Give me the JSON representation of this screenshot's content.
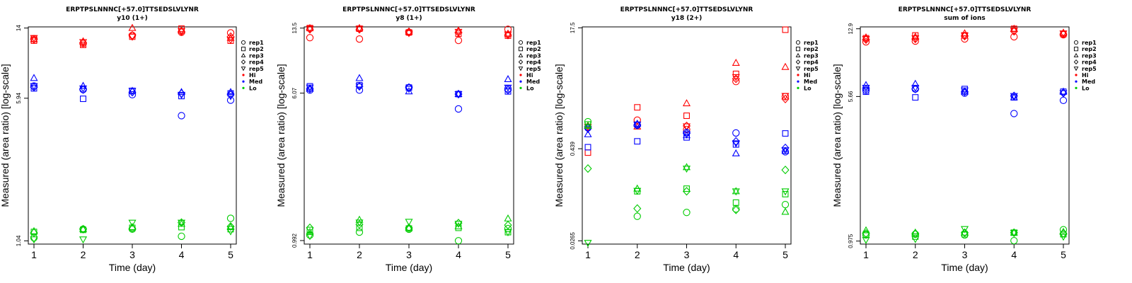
{
  "figure_title": "ERPTPSLNNNC[+57.0]TTSEDSLVLYNR",
  "legend": [
    {
      "label": "rep1",
      "shape": "circle"
    },
    {
      "label": "rep2",
      "shape": "square"
    },
    {
      "label": "rep3",
      "shape": "triangle-up"
    },
    {
      "label": "rep4",
      "shape": "diamond"
    },
    {
      "label": "rep5",
      "shape": "triangle-down"
    },
    {
      "label": "Hi",
      "shape": "dot",
      "color": "#ff0000"
    },
    {
      "label": "Med",
      "shape": "dot",
      "color": "#0000ff"
    },
    {
      "label": "Lo",
      "shape": "dot",
      "color": "#00cc00"
    }
  ],
  "colors": {
    "Hi": "#ff0000",
    "Med": "#0000ff",
    "Lo": "#00cc00"
  },
  "chart_data": [
    {
      "type": "scatter",
      "title": "ERPTPSLNNNC[+57.0]TTSEDSLVLYNR",
      "subtitle": "y10 (1+)",
      "xlabel": "Time (day)",
      "ylabel": "Measured (area ratio) [log-scale]",
      "yscale": "log",
      "x_ticks": [
        "1",
        "2",
        "3",
        "4",
        "5"
      ],
      "y_ticks": [
        {
          "value": 1.04,
          "label": "1.04"
        },
        {
          "value": 5.94,
          "label": "5.94"
        },
        {
          "value": 14,
          "label": "14"
        }
      ],
      "ylim": [
        1.0,
        14.2
      ],
      "series": [
        {
          "name": "Hi",
          "color": "#ff0000",
          "points": {
            "rep1": [
              12.3,
              11.6,
              12.8,
              13.3,
              13.2
            ],
            "rep2": [
              12.0,
              11.4,
              12.6,
              13.9,
              12.0
            ],
            "rep3": [
              12.2,
              11.9,
              14.0,
              13.6,
              12.4
            ],
            "rep4": [
              12.2,
              11.7,
              12.8,
              13.4,
              12.6
            ],
            "rep5": [
              12.4,
              11.8,
              12.6,
              13.5,
              12.1
            ]
          }
        },
        {
          "name": "Med",
          "color": "#0000ff",
          "points": {
            "rep1": [
              6.9,
              6.6,
              6.2,
              4.8,
              5.8
            ],
            "rep2": [
              6.7,
              5.9,
              6.5,
              6.1,
              6.3
            ],
            "rep3": [
              7.6,
              6.9,
              6.5,
              6.4,
              6.4
            ],
            "rep4": [
              6.8,
              6.6,
              6.4,
              6.3,
              6.2
            ],
            "rep5": [
              6.9,
              6.7,
              6.5,
              6.2,
              6.1
            ]
          }
        },
        {
          "name": "Lo",
          "color": "#00cc00",
          "points": {
            "rep1": [
              1.08,
              1.2,
              1.2,
              1.1,
              1.37
            ],
            "rep2": [
              1.16,
              1.19,
              1.22,
              1.23,
              1.2
            ],
            "rep3": [
              1.17,
              1.2,
              1.23,
              1.28,
              1.23
            ],
            "rep4": [
              1.15,
              1.2,
              1.21,
              1.3,
              1.24
            ],
            "rep5": [
              1.06,
              1.06,
              1.3,
              1.3,
              1.17
            ]
          }
        }
      ]
    },
    {
      "type": "scatter",
      "title": "ERPTPSLNNNC[+57.0]TTSEDSLVLYNR",
      "subtitle": "y8 (1+)",
      "xlabel": "Time (day)",
      "ylabel": "Measured (area ratio) [log-scale]",
      "yscale": "log",
      "x_ticks": [
        "1",
        "2",
        "3",
        "4",
        "5"
      ],
      "y_ticks": [
        {
          "value": 0.992,
          "label": "0.992"
        },
        {
          "value": 6.07,
          "label": "6.07"
        },
        {
          "value": 13.5,
          "label": "13.5"
        }
      ],
      "ylim": [
        0.95,
        13.7
      ],
      "series": [
        {
          "name": "Hi",
          "color": "#ff0000",
          "points": {
            "rep1": [
              12.0,
              11.8,
              12.8,
              11.6,
              13.3
            ],
            "rep2": [
              13.5,
              13.4,
              12.8,
              12.6,
              12.3
            ],
            "rep3": [
              13.5,
              13.5,
              12.9,
              13.1,
              12.6
            ],
            "rep4": [
              13.3,
              13.3,
              12.9,
              12.8,
              12.4
            ],
            "rep5": [
              13.4,
              13.4,
              12.7,
              12.9,
              12.5
            ]
          }
        },
        {
          "name": "Med",
          "color": "#0000ff",
          "points": {
            "rep1": [
              6.3,
              6.3,
              6.5,
              5.0,
              6.4
            ],
            "rep2": [
              6.6,
              6.7,
              6.5,
              6.0,
              6.2
            ],
            "rep3": [
              6.4,
              7.3,
              6.2,
              6.0,
              7.2
            ],
            "rep4": [
              6.4,
              6.6,
              6.5,
              6.0,
              6.3
            ],
            "rep5": [
              6.5,
              6.6,
              6.4,
              6.0,
              6.5
            ]
          }
        },
        {
          "name": "Lo",
          "color": "#00cc00",
          "points": {
            "rep1": [
              1.06,
              1.1,
              1.14,
              0.99,
              1.15
            ],
            "rep2": [
              1.13,
              1.16,
              1.15,
              1.16,
              1.1
            ],
            "rep3": [
              1.1,
              1.28,
              1.16,
              1.18,
              1.3
            ],
            "rep4": [
              1.16,
              1.21,
              1.16,
              1.23,
              1.2
            ],
            "rep5": [
              1.05,
              1.24,
              1.25,
              1.22,
              1.1
            ]
          }
        }
      ]
    },
    {
      "type": "scatter",
      "title": "ERPTPSLNNNC[+57.0]TTSEDSLVLYNR",
      "subtitle": "y18 (2+)",
      "xlabel": "Time (day)",
      "ylabel": "Measured (area ratio) [log-scale]",
      "yscale": "log",
      "x_ticks": [
        "1",
        "2",
        "3",
        "4",
        "5"
      ],
      "y_ticks": [
        {
          "value": 0.0265,
          "label": "0.0265"
        },
        {
          "value": 0.439,
          "label": "0.439"
        },
        {
          "value": 17.5,
          "label": "17.5"
        }
      ],
      "ylim": [
        0.024,
        18
      ],
      "series": [
        {
          "name": "Hi",
          "color": "#ff0000",
          "points": {
            "rep1": [
              0.85,
              1.05,
              0.79,
              3.4,
              2.15
            ],
            "rep2": [
              0.39,
              1.55,
              1.2,
              4.3,
              16.5
            ],
            "rep3": [
              0.89,
              0.86,
              1.75,
              6.0,
              5.3
            ],
            "rep4": [
              0.82,
              0.9,
              0.88,
              3.7,
              2.0
            ],
            "rep5": [
              0.86,
              0.92,
              0.87,
              3.9,
              2.2
            ]
          }
        },
        {
          "name": "Med",
          "color": "#0000ff",
          "points": {
            "rep1": [
              0.83,
              0.9,
              0.72,
              0.71,
              0.4
            ],
            "rep2": [
              0.46,
              0.55,
              0.62,
              0.5,
              0.7
            ],
            "rep3": [
              0.68,
              0.94,
              0.66,
              0.38,
              0.41
            ],
            "rep4": [
              0.82,
              0.9,
              0.7,
              0.55,
              0.45
            ],
            "rep5": [
              0.8,
              0.92,
              0.68,
              0.52,
              0.42
            ]
          }
        },
        {
          "name": "Lo",
          "color": "#00cc00",
          "points": {
            "rep1": [
              1.0,
              0.056,
              0.063,
              0.07,
              0.08
            ],
            "rep2": [
              0.92,
              0.12,
              0.13,
              0.085,
              0.11
            ],
            "rep3": [
              0.88,
              0.13,
              0.25,
              0.12,
              0.064
            ],
            "rep4": [
              0.24,
              0.071,
              0.12,
              0.068,
              0.23
            ],
            "rep5": [
              0.025,
              0.122,
              0.24,
              0.12,
              0.12
            ]
          }
        }
      ]
    },
    {
      "type": "scatter",
      "title": "ERPTPSLNNNC[+57.0]TTSEDSLVLYNR",
      "subtitle": "sum of ions",
      "xlabel": "Time (day)",
      "ylabel": "Measured (area ratio) [log-scale]",
      "yscale": "log",
      "x_ticks": [
        "1",
        "2",
        "3",
        "4",
        "5"
      ],
      "y_ticks": [
        {
          "value": 0.975,
          "label": "0.975"
        },
        {
          "value": 5.66,
          "label": "5.66"
        },
        {
          "value": 12.9,
          "label": "12.9"
        }
      ],
      "ylim": [
        0.94,
        13.2
      ],
      "series": [
        {
          "name": "Hi",
          "color": "#ff0000",
          "points": {
            "rep1": [
              11.0,
              11.1,
              11.4,
              11.7,
              12.0
            ],
            "rep2": [
              11.5,
              11.9,
              11.9,
              12.9,
              12.1
            ],
            "rep3": [
              11.6,
              11.7,
              12.2,
              12.9,
              12.3
            ],
            "rep4": [
              11.3,
              11.4,
              11.8,
              12.5,
              12.1
            ],
            "rep5": [
              11.4,
              11.5,
              11.9,
              12.6,
              12.2
            ]
          }
        },
        {
          "name": "Med",
          "color": "#0000ff",
          "points": {
            "rep1": [
              6.1,
              6.2,
              5.9,
              4.6,
              5.4
            ],
            "rep2": [
              6.0,
              5.6,
              6.2,
              5.6,
              6.0
            ],
            "rep3": [
              6.5,
              6.6,
              6.0,
              5.6,
              6.0
            ],
            "rep4": [
              6.2,
              6.2,
              6.0,
              5.7,
              5.9
            ],
            "rep5": [
              6.3,
              6.3,
              6.1,
              5.7,
              5.9
            ]
          }
        },
        {
          "name": "Lo",
          "color": "#00cc00",
          "points": {
            "rep1": [
              1.05,
              1.06,
              1.05,
              0.98,
              1.12
            ],
            "rep2": [
              1.06,
              1.03,
              1.06,
              1.08,
              1.06
            ],
            "rep3": [
              1.11,
              1.08,
              1.08,
              1.08,
              1.09
            ],
            "rep4": [
              1.07,
              1.07,
              1.08,
              1.08,
              1.07
            ],
            "rep5": [
              0.99,
              1.0,
              1.13,
              1.08,
              1.03
            ]
          }
        }
      ]
    }
  ]
}
